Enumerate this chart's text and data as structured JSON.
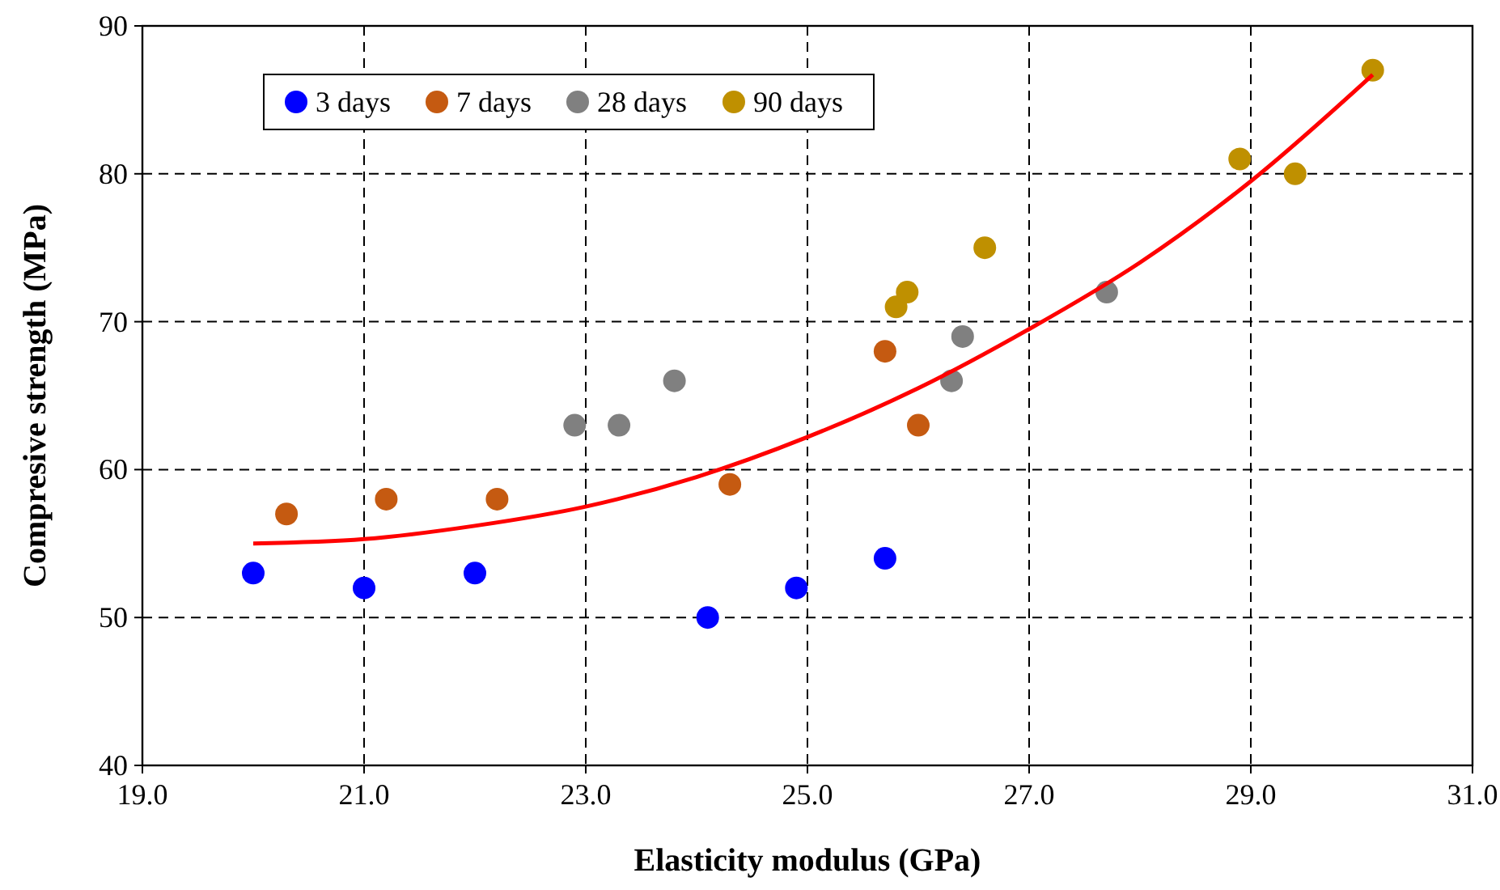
{
  "chart_data": {
    "type": "scatter",
    "xlabel": "Elasticity modulus (GPa)",
    "ylabel": "Compresive strength (MPa)",
    "xlim": [
      19,
      31
    ],
    "ylim": [
      40,
      90
    ],
    "xticks": [
      {
        "value": 19,
        "label": "19.0"
      },
      {
        "value": 21,
        "label": "21.0"
      },
      {
        "value": 23,
        "label": "23.0"
      },
      {
        "value": 25,
        "label": "25.0"
      },
      {
        "value": 27,
        "label": "27.0"
      },
      {
        "value": 29,
        "label": "29.0"
      },
      {
        "value": 31,
        "label": "31.0"
      }
    ],
    "yticks": [
      40,
      50,
      60,
      70,
      80,
      90
    ],
    "grid": true,
    "legend": "top left",
    "series": [
      {
        "name": "3 days",
        "marker": "circle",
        "color": "#0000ff",
        "x": [
          20.0,
          21.0,
          22.0,
          24.1,
          24.9,
          25.7
        ],
        "values": [
          53,
          52,
          53,
          50,
          52,
          54
        ]
      },
      {
        "name": "7 days",
        "marker": "circle",
        "color": "#c55a11",
        "x": [
          20.3,
          21.2,
          22.2,
          24.3,
          25.7,
          26.0
        ],
        "values": [
          57,
          58,
          58,
          59,
          68,
          63
        ]
      },
      {
        "name": "28 days",
        "marker": "circle",
        "color": "#808080",
        "x": [
          22.9,
          23.3,
          23.8,
          26.3,
          26.4,
          27.7
        ],
        "values": [
          63,
          63,
          66,
          66,
          69,
          72
        ]
      },
      {
        "name": "90 days",
        "marker": "circle",
        "color": "#bf9000",
        "x": [
          25.8,
          25.9,
          26.6,
          28.9,
          29.4,
          30.1
        ],
        "values": [
          71,
          72,
          75,
          81,
          80,
          87
        ]
      },
      {
        "type": "line",
        "color": "#ff0000",
        "x": [
          20,
          21,
          22,
          23,
          24,
          25,
          26,
          27,
          28,
          29,
          30.1
        ],
        "values": [
          55,
          55.3,
          56.2,
          57.5,
          59.5,
          62.2,
          65.5,
          69.5,
          74,
          79.5,
          86.7
        ]
      }
    ]
  }
}
